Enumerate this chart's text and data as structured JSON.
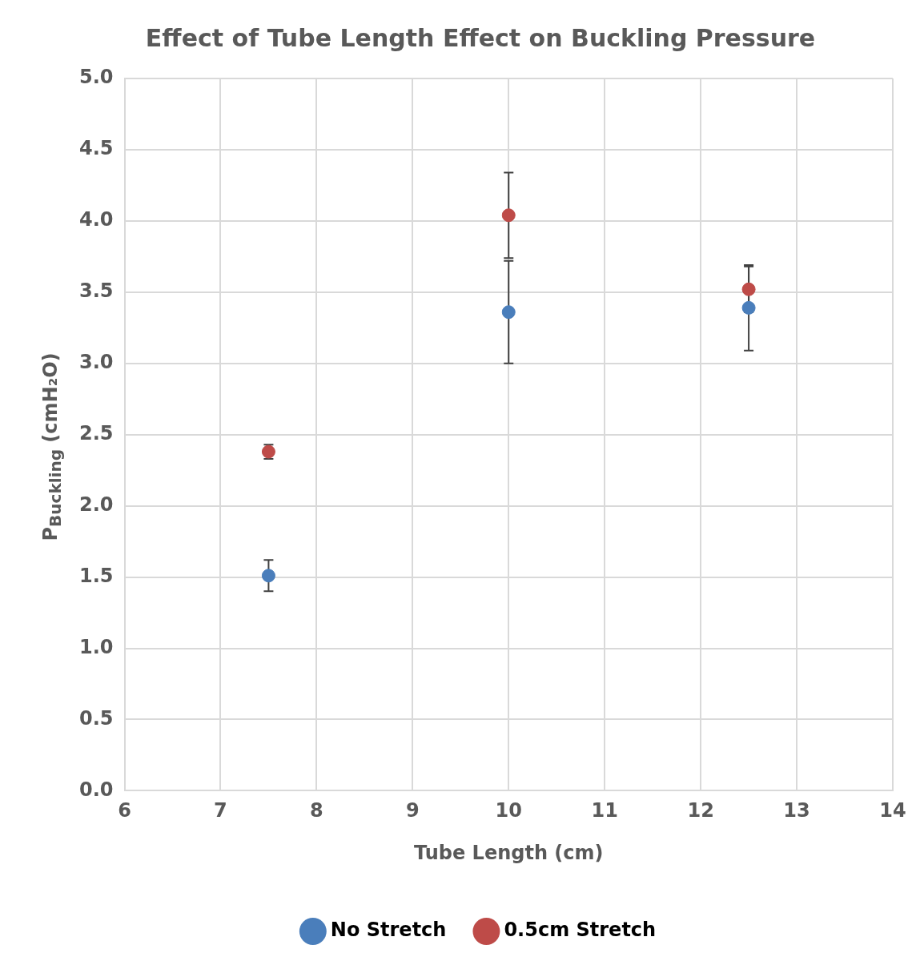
{
  "chart_data": {
    "type": "scatter",
    "title": "Effect of Tube Length Effect on Buckling Pressure",
    "xlabel": "Tube Length (cm)",
    "ylabel": "P$_{Buckling}$ (cmH₂O)",
    "xlim": [
      6,
      14
    ],
    "xticks": [
      6,
      7,
      8,
      9,
      10,
      11,
      12,
      13,
      14
    ],
    "ylim": [
      0,
      5
    ],
    "yticks": [
      {
        "value": 0,
        "label": "0.0"
      },
      {
        "value": 0.5,
        "label": "0.5"
      },
      {
        "value": 1,
        "label": "1.0"
      },
      {
        "value": 1.5,
        "label": "1.5"
      },
      {
        "value": 2,
        "label": "2.0"
      },
      {
        "value": 2.5,
        "label": "2.5"
      },
      {
        "value": 3,
        "label": "3.0"
      },
      {
        "value": 3.5,
        "label": "3.5"
      },
      {
        "value": 4,
        "label": "4.0"
      },
      {
        "value": 4.5,
        "label": "4.5"
      },
      {
        "value": 5,
        "label": "5.0"
      }
    ],
    "grid": true,
    "legend": "bottom",
    "marker": "circle",
    "series": [
      {
        "name": "No Stretch",
        "color": "#4a7ebb",
        "x": [
          7.5,
          10,
          12.5
        ],
        "values": [
          1.51,
          3.36,
          3.39
        ],
        "errors": [
          0.11,
          0.36,
          0.3
        ]
      },
      {
        "name": "0.5cm Stretch",
        "color": "#be4b48",
        "x": [
          7.5,
          10,
          12.5
        ],
        "values": [
          2.38,
          4.04,
          3.52
        ],
        "errors": [
          0.05,
          0.3,
          0.16
        ]
      }
    ]
  }
}
